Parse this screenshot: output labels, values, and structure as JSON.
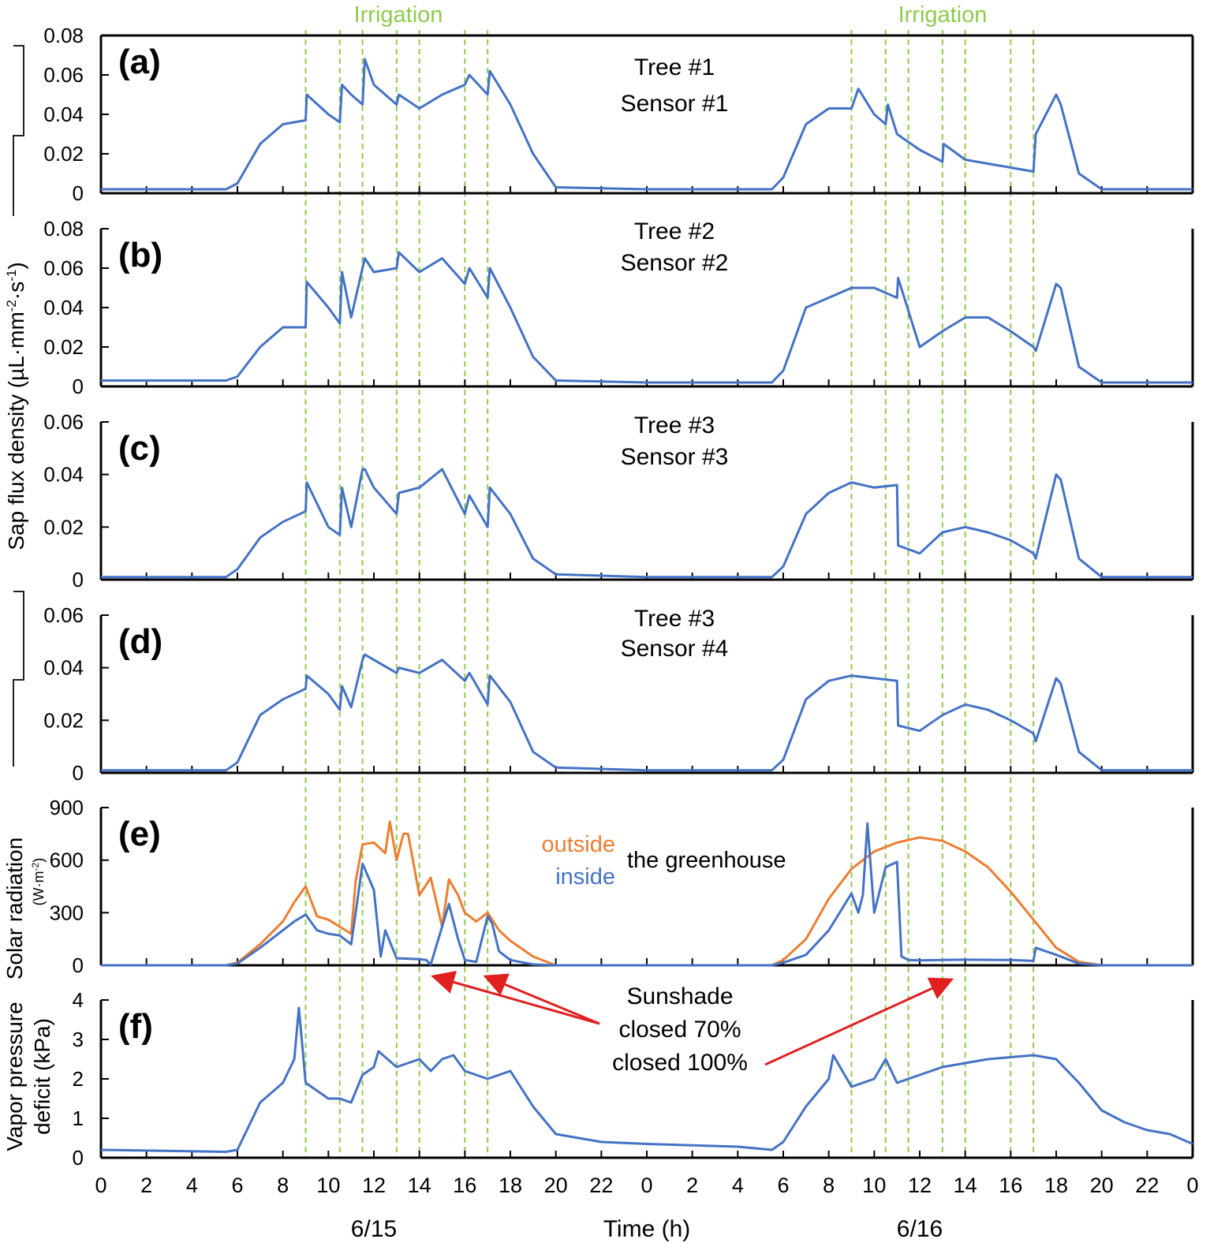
{
  "figure": {
    "ylabel_sap": "Sap flux density (µL·mm",
    "ylabel_sap_sup1": "-2",
    "ylabel_sap_mid": "·s",
    "ylabel_sap_sup2": "-1",
    "ylabel_sap_end": ")",
    "xlabel": "Time (h)",
    "day_labels": [
      "6/15",
      "6/16"
    ],
    "irrigation_label": "Irrigation",
    "x_ticks": [
      "0",
      "2",
      "4",
      "6",
      "8",
      "10",
      "12",
      "14",
      "16",
      "18",
      "20",
      "22",
      "0",
      "2",
      "4",
      "6",
      "8",
      "10",
      "12",
      "14",
      "16",
      "18",
      "20",
      "22",
      "0"
    ],
    "legend_outside": "outside",
    "legend_inside": "inside",
    "legend_suffix": "the greenhouse",
    "sunshade_lines": [
      "Sunshade",
      "closed 70%",
      "closed 100%"
    ],
    "solar_ylabel": "Solar radiation",
    "solar_unit": "(W·m",
    "solar_unit_sup": "-2",
    "solar_unit_end": ")",
    "vpd_ylabel_1": "Vapor pressure",
    "vpd_ylabel_2": "deficit (kPa)",
    "colors": {
      "series": "#4472c4",
      "outside": "#ed7d31",
      "irrigation": "#8fcb4d",
      "arrow": "#e02020"
    }
  },
  "chart_data": [
    {
      "id": "a",
      "type": "line",
      "panel_label": "(a)",
      "tree_label": "Tree #1",
      "sensor_label": "Sensor #1",
      "ylim": [
        0,
        0.08
      ],
      "yticks": [
        "0",
        "0.02",
        "0.04",
        "0.06",
        "0.08"
      ],
      "ytick_values": [
        0,
        0.02,
        0.04,
        0.06,
        0.08
      ],
      "x": [
        0,
        5.5,
        6,
        7,
        8,
        9,
        9.05,
        10,
        10.5,
        10.6,
        11,
        11.5,
        11.6,
        12,
        13,
        13.1,
        14,
        15,
        16,
        16.2,
        17,
        17.1,
        18,
        19,
        20,
        24,
        29.5,
        30,
        31,
        32,
        33,
        33.3,
        34,
        34.5,
        34.6,
        35,
        36,
        37,
        37.05,
        38,
        39,
        40,
        41,
        41.1,
        42,
        42.2,
        43,
        44,
        48
      ],
      "y": [
        0.002,
        0.002,
        0.005,
        0.025,
        0.035,
        0.037,
        0.05,
        0.04,
        0.036,
        0.055,
        0.05,
        0.045,
        0.068,
        0.055,
        0.045,
        0.05,
        0.043,
        0.05,
        0.055,
        0.06,
        0.05,
        0.062,
        0.045,
        0.02,
        0.003,
        0.002,
        0.002,
        0.008,
        0.035,
        0.043,
        0.043,
        0.053,
        0.04,
        0.035,
        0.045,
        0.03,
        0.022,
        0.016,
        0.025,
        0.017,
        0.015,
        0.013,
        0.011,
        0.03,
        0.05,
        0.045,
        0.01,
        0.002,
        0.002
      ]
    },
    {
      "id": "b",
      "type": "line",
      "panel_label": "(b)",
      "tree_label": "Tree #2",
      "sensor_label": "Sensor #2",
      "ylim": [
        0,
        0.08
      ],
      "yticks": [
        "0",
        "0.02",
        "0.04",
        "0.06",
        "0.08"
      ],
      "ytick_values": [
        0,
        0.02,
        0.04,
        0.06,
        0.08
      ],
      "x": [
        0,
        5.5,
        6,
        7,
        8,
        9,
        9.05,
        10,
        10.5,
        10.6,
        11,
        11.5,
        11.6,
        12,
        13,
        13.1,
        14,
        15,
        16,
        16.2,
        17,
        17.1,
        18,
        19,
        20,
        24,
        29.5,
        30,
        31,
        32,
        33,
        34,
        35,
        35.05,
        36,
        37,
        38,
        39,
        40,
        41,
        41.1,
        42,
        42.2,
        43,
        44,
        48
      ],
      "y": [
        0.003,
        0.003,
        0.005,
        0.02,
        0.03,
        0.03,
        0.053,
        0.04,
        0.032,
        0.058,
        0.035,
        0.06,
        0.065,
        0.058,
        0.06,
        0.068,
        0.058,
        0.065,
        0.052,
        0.06,
        0.045,
        0.06,
        0.04,
        0.015,
        0.003,
        0.002,
        0.002,
        0.008,
        0.04,
        0.045,
        0.05,
        0.05,
        0.045,
        0.055,
        0.02,
        0.028,
        0.035,
        0.035,
        0.028,
        0.02,
        0.018,
        0.052,
        0.05,
        0.01,
        0.002,
        0.002
      ]
    },
    {
      "id": "c",
      "type": "line",
      "panel_label": "(c)",
      "tree_label": "Tree #3",
      "sensor_label": "Sensor #3",
      "ylim": [
        0,
        0.06
      ],
      "yticks": [
        "0",
        "0.02",
        "0.04",
        "0.06"
      ],
      "ytick_values": [
        0,
        0.02,
        0.04,
        0.06
      ],
      "x": [
        0,
        5.5,
        6,
        7,
        8,
        9,
        9.05,
        10,
        10.5,
        10.6,
        11,
        11.5,
        11.6,
        12,
        13,
        13.1,
        14,
        15,
        16,
        16.2,
        17,
        17.1,
        18,
        19,
        20,
        24,
        29.5,
        30,
        31,
        32,
        33,
        34,
        35,
        35.05,
        36,
        37,
        38,
        39,
        40,
        41,
        41.1,
        42,
        42.2,
        43,
        44,
        48
      ],
      "y": [
        0.001,
        0.001,
        0.004,
        0.016,
        0.022,
        0.026,
        0.037,
        0.02,
        0.017,
        0.035,
        0.02,
        0.042,
        0.042,
        0.035,
        0.025,
        0.033,
        0.035,
        0.042,
        0.025,
        0.032,
        0.02,
        0.035,
        0.025,
        0.008,
        0.002,
        0.001,
        0.001,
        0.005,
        0.025,
        0.033,
        0.037,
        0.035,
        0.036,
        0.013,
        0.01,
        0.018,
        0.02,
        0.018,
        0.015,
        0.01,
        0.008,
        0.04,
        0.038,
        0.008,
        0.001,
        0.001
      ]
    },
    {
      "id": "d",
      "type": "line",
      "panel_label": "(d)",
      "tree_label": "Tree #3",
      "sensor_label": "Sensor #4",
      "ylim": [
        0,
        0.06
      ],
      "yticks": [
        "0",
        "0.02",
        "0.04",
        "0.06"
      ],
      "ytick_values": [
        0,
        0.02,
        0.04,
        0.06
      ],
      "x": [
        0,
        5.5,
        6,
        7,
        8,
        9,
        9.05,
        10,
        10.5,
        10.6,
        11,
        11.5,
        11.6,
        12,
        13,
        13.1,
        14,
        15,
        16,
        16.2,
        17,
        17.1,
        18,
        19,
        20,
        24,
        29.5,
        30,
        31,
        32,
        33,
        34,
        35,
        35.05,
        36,
        37,
        38,
        39,
        40,
        41,
        41.1,
        42,
        42.2,
        43,
        44,
        48
      ],
      "y": [
        0.001,
        0.001,
        0.004,
        0.022,
        0.028,
        0.032,
        0.037,
        0.03,
        0.024,
        0.033,
        0.025,
        0.043,
        0.045,
        0.043,
        0.038,
        0.04,
        0.038,
        0.043,
        0.035,
        0.038,
        0.026,
        0.037,
        0.027,
        0.008,
        0.002,
        0.001,
        0.001,
        0.005,
        0.028,
        0.035,
        0.037,
        0.036,
        0.035,
        0.018,
        0.016,
        0.022,
        0.026,
        0.024,
        0.02,
        0.015,
        0.012,
        0.036,
        0.034,
        0.008,
        0.001,
        0.001
      ]
    },
    {
      "id": "e",
      "type": "line",
      "panel_label": "(e)",
      "ylim": [
        0,
        900
      ],
      "yticks": [
        "0",
        "300",
        "600",
        "900"
      ],
      "ytick_values": [
        0,
        300,
        600,
        900
      ],
      "series": [
        {
          "name": "outside",
          "x": [
            0,
            5.5,
            6,
            7,
            8,
            8.5,
            9,
            9.5,
            10,
            10.5,
            11,
            11.2,
            11.5,
            12,
            12.5,
            12.7,
            13,
            13.3,
            13.5,
            14,
            14.5,
            15,
            15.3,
            15.7,
            16,
            16.5,
            17,
            17.5,
            18,
            19,
            20,
            24,
            29.5,
            30,
            31,
            32,
            33,
            34,
            35,
            36,
            37,
            38,
            39,
            40,
            41,
            42,
            43,
            44,
            48
          ],
          "y": [
            0,
            0,
            15,
            120,
            250,
            360,
            450,
            280,
            260,
            220,
            180,
            480,
            690,
            700,
            640,
            820,
            600,
            750,
            750,
            400,
            500,
            220,
            490,
            400,
            300,
            250,
            300,
            200,
            140,
            50,
            0,
            0,
            0,
            30,
            150,
            380,
            550,
            650,
            700,
            730,
            710,
            650,
            560,
            420,
            260,
            100,
            20,
            0,
            0
          ]
        },
        {
          "name": "inside",
          "x": [
            0,
            5.5,
            6,
            7,
            8,
            8.5,
            9,
            9.5,
            10,
            10.5,
            11,
            11.2,
            11.5,
            12,
            12.3,
            12.5,
            13,
            14,
            14.3,
            14.5,
            15,
            15.3,
            15.7,
            16,
            16.5,
            17,
            17.2,
            17.5,
            18,
            19,
            20,
            24,
            29.5,
            30,
            31,
            32,
            33,
            33.3,
            33.5,
            33.7,
            34,
            34.5,
            35,
            35.2,
            35.5,
            36,
            37,
            38,
            40,
            41,
            41.1,
            42,
            43,
            44,
            48
          ],
          "y": [
            0,
            0,
            10,
            100,
            200,
            250,
            290,
            200,
            180,
            170,
            120,
            300,
            580,
            430,
            50,
            200,
            40,
            35,
            30,
            5,
            220,
            350,
            150,
            30,
            20,
            280,
            240,
            80,
            30,
            5,
            0,
            0,
            0,
            15,
            60,
            200,
            410,
            300,
            400,
            810,
            300,
            560,
            590,
            50,
            30,
            28,
            30,
            32,
            30,
            25,
            100,
            60,
            10,
            0,
            0
          ]
        }
      ],
      "annotations": {
        "sunshade_arrow_targets_h": [
          14.6,
          16.9,
          37.4
        ]
      }
    },
    {
      "id": "f",
      "type": "line",
      "panel_label": "(f)",
      "ylim": [
        0,
        4
      ],
      "yticks": [
        "0",
        "1",
        "2",
        "3",
        "4"
      ],
      "ytick_values": [
        0,
        1,
        2,
        3,
        4
      ],
      "x": [
        0,
        5.5,
        6,
        7,
        8,
        8.5,
        8.7,
        9,
        10,
        10.5,
        11,
        11.5,
        12,
        12.2,
        13,
        14,
        14.5,
        15,
        15.5,
        16,
        17,
        18,
        19,
        20,
        22,
        24,
        28,
        29.5,
        30,
        31,
        32,
        32.2,
        33,
        34,
        34.5,
        35,
        36,
        37,
        38,
        39,
        40,
        41,
        42,
        43,
        44,
        45,
        46,
        47,
        48
      ],
      "y": [
        0.2,
        0.15,
        0.2,
        1.4,
        1.9,
        2.5,
        3.8,
        1.9,
        1.5,
        1.5,
        1.4,
        2.1,
        2.3,
        2.7,
        2.3,
        2.5,
        2.2,
        2.5,
        2.6,
        2.2,
        2.0,
        2.2,
        1.3,
        0.6,
        0.4,
        0.35,
        0.28,
        0.2,
        0.4,
        1.3,
        2.0,
        2.6,
        1.8,
        2.0,
        2.5,
        1.9,
        2.1,
        2.3,
        2.4,
        2.5,
        2.55,
        2.6,
        2.5,
        1.9,
        1.2,
        0.9,
        0.7,
        0.6,
        0.35
      ]
    }
  ]
}
